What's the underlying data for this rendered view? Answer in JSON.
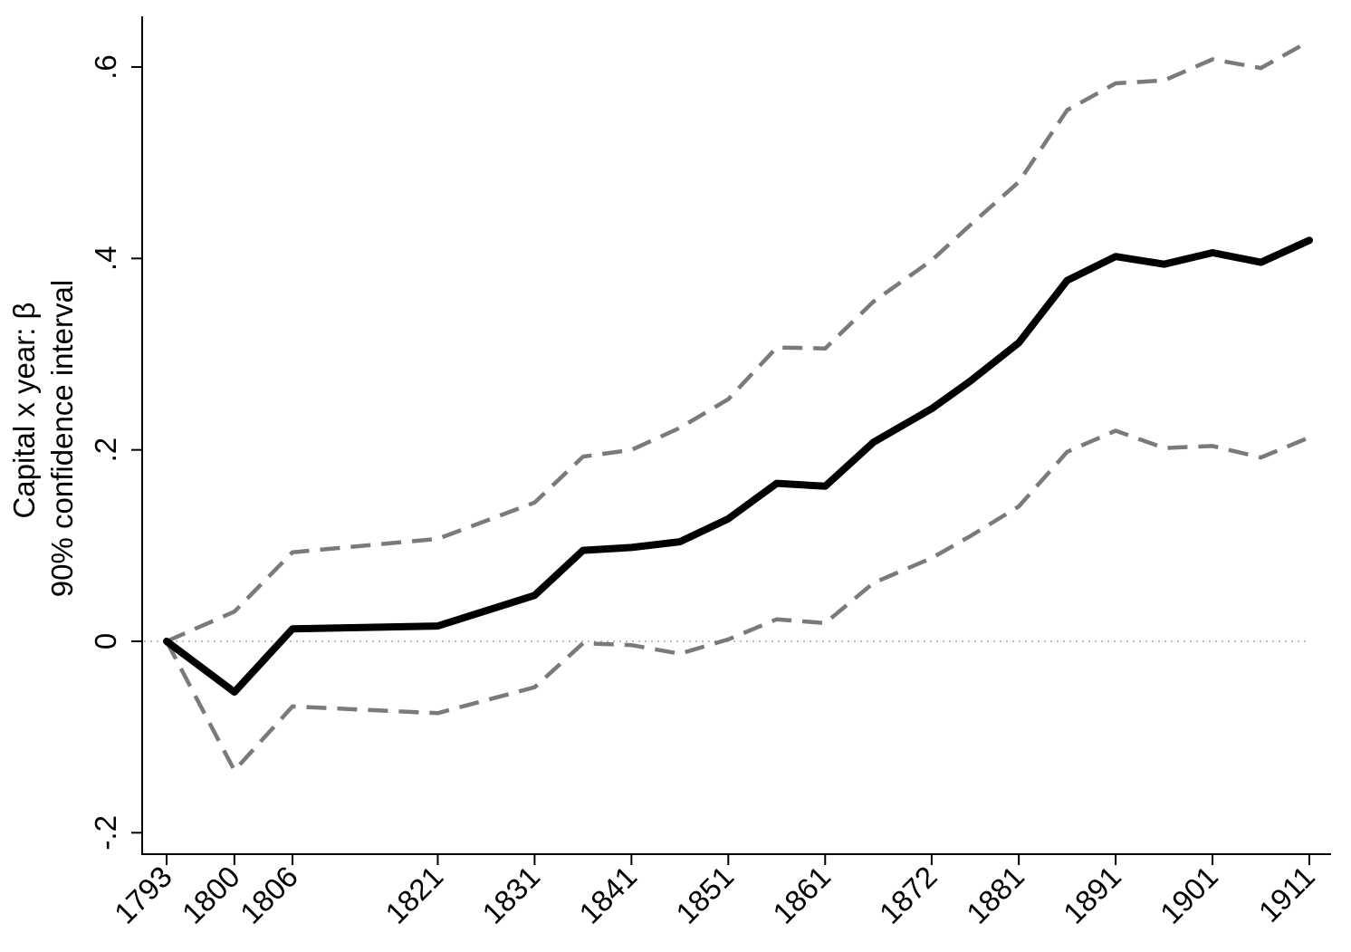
{
  "chart_data": {
    "type": "line",
    "title": "",
    "ylabel_lines": [
      "Capital x year: β",
      "90% confidence interval"
    ],
    "xlabel": "",
    "x": [
      1793,
      1800,
      1806,
      1821,
      1831,
      1836,
      1841,
      1846,
      1851,
      1856,
      1861,
      1866,
      1872,
      1876,
      1881,
      1886,
      1891,
      1896,
      1901,
      1906,
      1911
    ],
    "x_ticks": [
      "1793",
      "1800",
      "1806",
      "1821",
      "1831",
      "1841",
      "1851",
      "1861",
      "1872",
      "1881",
      "1891",
      "1901",
      "1911"
    ],
    "y_ticks": [
      "-.2",
      "0",
      ".2",
      ".4",
      ".6"
    ],
    "xlim": [
      1791,
      1913
    ],
    "ylim": [
      -0.222,
      0.652
    ],
    "reference_line_y": 0,
    "series": [
      {
        "role": "estimate",
        "color": "#000000",
        "style": "solid",
        "values": [
          0.0,
          -0.053,
          0.013,
          0.016,
          0.048,
          0.095,
          0.098,
          0.104,
          0.128,
          0.165,
          0.162,
          0.208,
          0.243,
          0.272,
          0.312,
          0.377,
          0.402,
          0.394,
          0.406,
          0.396,
          0.419
        ]
      },
      {
        "role": "upper_ci",
        "color": "#7a7a7a",
        "style": "dashed",
        "values": [
          0.0,
          0.031,
          0.093,
          0.107,
          0.145,
          0.193,
          0.2,
          0.223,
          0.253,
          0.307,
          0.306,
          0.355,
          0.398,
          0.435,
          0.48,
          0.555,
          0.583,
          0.586,
          0.608,
          0.599,
          0.627
        ]
      },
      {
        "role": "lower_ci",
        "color": "#7a7a7a",
        "style": "dashed",
        "values": [
          0.0,
          -0.135,
          -0.068,
          -0.075,
          -0.048,
          -0.002,
          -0.004,
          -0.013,
          0.002,
          0.023,
          0.019,
          0.061,
          0.087,
          0.11,
          0.141,
          0.198,
          0.22,
          0.202,
          0.204,
          0.192,
          0.213
        ]
      }
    ]
  }
}
